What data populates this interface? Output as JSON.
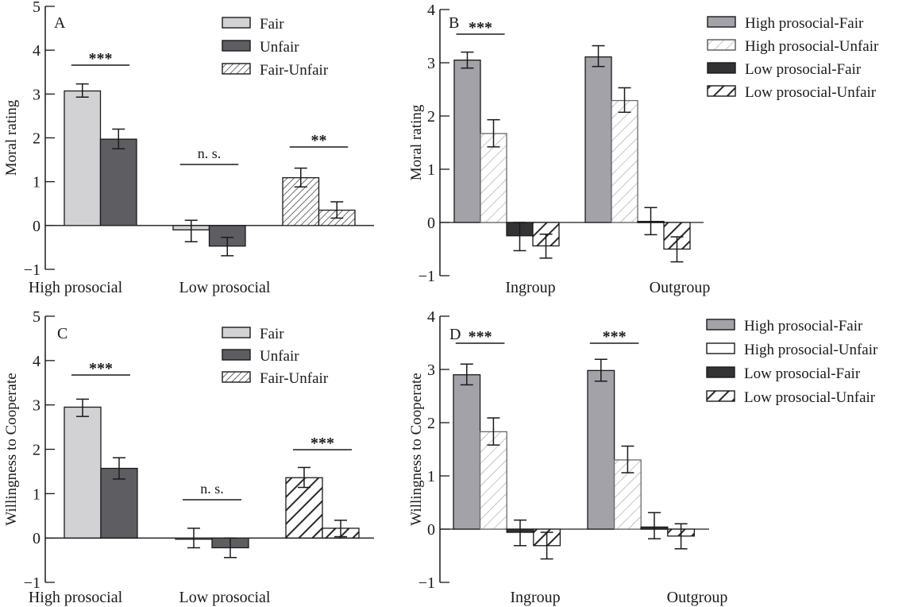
{
  "colors": {
    "fair_light": "#d2d2d4",
    "unfair_dark": "#5e5d62",
    "hp_fair": "#a3a2a9",
    "lp_fair": "#333335",
    "axis": "#1a1a1a",
    "hatch_light": "#9a9a9a",
    "hatch_dark": "#2a2a2a"
  },
  "chart_data": [
    {
      "panel": "A",
      "type": "bar",
      "title": "",
      "panel_label": "A",
      "xlabel": "",
      "ylabel": "Moral rating",
      "ylim": [
        -1,
        5
      ],
      "yticks": [
        -1,
        0,
        1,
        2,
        3,
        4,
        5
      ],
      "ytick_labels": [
        "−1",
        "0",
        "1",
        "2",
        "3",
        "4",
        "5"
      ],
      "grid": false,
      "legend_position": "top-right",
      "categories": [
        "High prosocial",
        "Low prosocial"
      ],
      "groups": [
        {
          "category": "High prosocial",
          "bars": [
            {
              "series": "Fair",
              "value": 3.07,
              "err_high": 3.23,
              "err_low": 2.93
            },
            {
              "series": "Unfair",
              "value": 1.97,
              "err_high": 2.2,
              "err_low": 1.75
            }
          ],
          "significance": "***"
        },
        {
          "category": "Low prosocial",
          "bars": [
            {
              "series": "Fair",
              "value": -0.1,
              "err_high": 0.12,
              "err_low": -0.37
            },
            {
              "series": "Unfair",
              "value": -0.47,
              "err_high": -0.27,
              "err_low": -0.69
            }
          ],
          "significance": "n. s."
        },
        {
          "category": "Fair-Unfair",
          "bars": [
            {
              "series": "Fair-Unfair (High)",
              "value": 1.09,
              "err_high": 1.31,
              "err_low": 0.88
            },
            {
              "series": "Fair-Unfair (Low)",
              "value": 0.35,
              "err_high": 0.54,
              "err_low": 0.17
            }
          ],
          "significance": "**"
        }
      ],
      "legend": [
        {
          "label": "Fair",
          "style": "fair_light"
        },
        {
          "label": "Unfair",
          "style": "unfair_dark"
        },
        {
          "label": "Fair-Unfair",
          "style": "hatch_dense"
        }
      ]
    },
    {
      "panel": "B",
      "type": "bar",
      "title": "",
      "panel_label": "B",
      "xlabel": "",
      "ylabel": "Moral rating",
      "ylim": [
        -1,
        4
      ],
      "yticks": [
        -1,
        0,
        1,
        2,
        3,
        4
      ],
      "ytick_labels": [
        "−1",
        "0",
        "1",
        "2",
        "3",
        "4"
      ],
      "grid": false,
      "legend_position": "top-right",
      "categories": [
        "Ingroup",
        "Outgroup"
      ],
      "groups": [
        {
          "category": "Ingroup",
          "bars": [
            {
              "series": "High prosocial-Fair",
              "value": 3.05,
              "err_high": 3.2,
              "err_low": 2.9
            },
            {
              "series": "High prosocial-Unfair",
              "value": 1.67,
              "err_high": 1.93,
              "err_low": 1.42
            },
            {
              "series": "Low prosocial-Fair",
              "value": -0.25,
              "err_high": 0.0,
              "err_low": -0.53
            },
            {
              "series": "Low prosocial-Unfair",
              "value": -0.44,
              "err_high": -0.22,
              "err_low": -0.67
            }
          ],
          "significance": "***"
        },
        {
          "category": "Outgroup",
          "bars": [
            {
              "series": "High prosocial-Fair",
              "value": 3.11,
              "err_high": 3.32,
              "err_low": 2.93
            },
            {
              "series": "High prosocial-Unfair",
              "value": 2.29,
              "err_high": 2.53,
              "err_low": 2.07
            },
            {
              "series": "Low prosocial-Fair",
              "value": 0.02,
              "err_high": 0.28,
              "err_low": -0.23
            },
            {
              "series": "Low prosocial-Unfair",
              "value": -0.5,
              "err_high": -0.27,
              "err_low": -0.74
            }
          ],
          "significance": ""
        }
      ],
      "legend": [
        {
          "label": "High prosocial-Fair",
          "style": "hp_fair"
        },
        {
          "label": "High prosocial-Unfair",
          "style": "hatch_light"
        },
        {
          "label": "Low prosocial-Fair",
          "style": "lp_fair"
        },
        {
          "label": "Low prosocial-Unfair",
          "style": "hatch_bold"
        }
      ]
    },
    {
      "panel": "C",
      "type": "bar",
      "title": "",
      "panel_label": "C",
      "xlabel": "",
      "ylabel": "Willingness to Cooperate",
      "ylim": [
        -1,
        5
      ],
      "yticks": [
        -1,
        0,
        1,
        2,
        3,
        4,
        5
      ],
      "ytick_labels": [
        "−1",
        "0",
        "1",
        "2",
        "3",
        "4",
        "5"
      ],
      "grid": false,
      "legend_position": "top-right",
      "categories": [
        "High prosocial",
        "Low prosocial"
      ],
      "groups": [
        {
          "category": "High prosocial",
          "bars": [
            {
              "series": "Fair",
              "value": 2.95,
              "err_high": 3.13,
              "err_low": 2.74
            },
            {
              "series": "Unfair",
              "value": 1.57,
              "err_high": 1.81,
              "err_low": 1.33
            }
          ],
          "significance": "***"
        },
        {
          "category": "Low prosocial",
          "bars": [
            {
              "series": "Fair",
              "value": 0.0,
              "err_high": 0.22,
              "err_low": -0.22
            },
            {
              "series": "Unfair",
              "value": -0.22,
              "err_high": 0.0,
              "err_low": -0.44
            }
          ],
          "significance": "n. s."
        },
        {
          "category": "Fair-Unfair",
          "bars": [
            {
              "series": "Fair-Unfair (High)",
              "value": 1.36,
              "err_high": 1.59,
              "err_low": 1.14
            },
            {
              "series": "Fair-Unfair (Low)",
              "value": 0.22,
              "err_high": 0.4,
              "err_low": 0.03
            }
          ],
          "significance": "***"
        }
      ],
      "legend": [
        {
          "label": "Fair",
          "style": "fair_light"
        },
        {
          "label": "Unfair",
          "style": "unfair_dark"
        },
        {
          "label": "Fair-Unfair",
          "style": "hatch_dense"
        }
      ]
    },
    {
      "panel": "D",
      "type": "bar",
      "title": "",
      "panel_label": "D",
      "xlabel": "",
      "ylabel": "Willingness to Cooperate",
      "ylim": [
        -1,
        4
      ],
      "yticks": [
        -1,
        0,
        1,
        2,
        3,
        4
      ],
      "ytick_labels": [
        "−1",
        "0",
        "1",
        "2",
        "3",
        "4"
      ],
      "grid": false,
      "legend_position": "top-right",
      "categories": [
        "Ingroup",
        "Outgroup"
      ],
      "groups": [
        {
          "category": "Ingroup",
          "bars": [
            {
              "series": "High prosocial-Fair",
              "value": 2.9,
              "err_high": 3.1,
              "err_low": 2.71
            },
            {
              "series": "High prosocial-Unfair",
              "value": 1.83,
              "err_high": 2.09,
              "err_low": 1.58
            },
            {
              "series": "Low prosocial-Fair",
              "value": -0.06,
              "err_high": 0.17,
              "err_low": -0.31
            },
            {
              "series": "Low prosocial-Unfair",
              "value": -0.31,
              "err_high": -0.06,
              "err_low": -0.56
            }
          ],
          "significance": "***"
        },
        {
          "category": "Outgroup",
          "bars": [
            {
              "series": "High prosocial-Fair",
              "value": 2.98,
              "err_high": 3.19,
              "err_low": 2.78
            },
            {
              "series": "High prosocial-Unfair",
              "value": 1.3,
              "err_high": 1.56,
              "err_low": 1.06
            },
            {
              "series": "Low prosocial-Fair",
              "value": 0.04,
              "err_high": 0.31,
              "err_low": -0.18
            },
            {
              "series": "Low prosocial-Unfair",
              "value": -0.13,
              "err_high": 0.1,
              "err_low": -0.37
            }
          ],
          "significance": "***"
        }
      ],
      "legend": [
        {
          "label": "High prosocial-Fair",
          "style": "hp_fair"
        },
        {
          "label": "High prosocial-Unfair",
          "style": "blank"
        },
        {
          "label": "Low prosocial-Fair",
          "style": "lp_fair"
        },
        {
          "label": "Low prosocial-Unfair",
          "style": "hatch_bold"
        }
      ]
    }
  ]
}
